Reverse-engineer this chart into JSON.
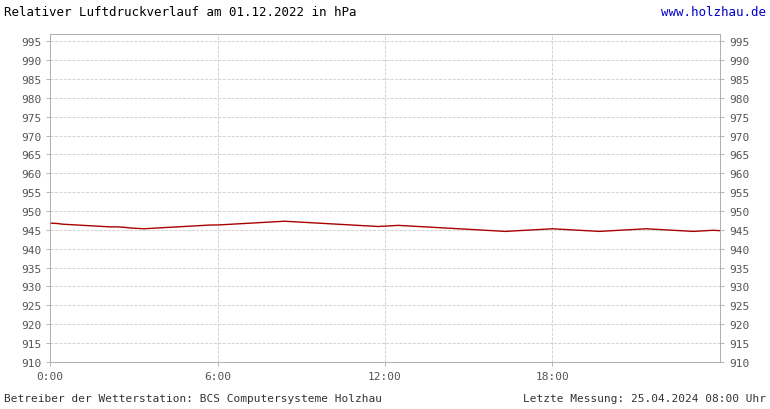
{
  "title": "Relativer Luftdruckverlauf am 01.12.2022 in hPa",
  "website": "www.holzhau.de",
  "footer_left": "Betreiber der Wetterstation: BCS Computersysteme Holzhau",
  "footer_right": "Letzte Messung: 25.04.2024 08:00 Uhr",
  "background_color": "#ffffff",
  "plot_bg_color": "#ffffff",
  "grid_color": "#cccccc",
  "line_color": "#aa0000",
  "title_color": "#000000",
  "website_color": "#0000cc",
  "footer_color": "#333333",
  "ylim": [
    910,
    997
  ],
  "ytick_min": 910,
  "ytick_max": 995,
  "ytick_step": 5,
  "xtick_labels": [
    "0:00",
    "6:00",
    "12:00",
    "18:00"
  ],
  "xtick_positions": [
    0.0,
    0.25,
    0.5,
    0.75
  ],
  "xlim": [
    0,
    1
  ],
  "title_fontsize": 9,
  "website_fontsize": 9,
  "footer_fontsize": 8,
  "tick_fontsize": 8,
  "pressure_data_x": [
    0.0,
    0.01,
    0.02,
    0.03,
    0.04,
    0.05,
    0.06,
    0.07,
    0.08,
    0.09,
    0.1,
    0.11,
    0.12,
    0.13,
    0.14,
    0.15,
    0.16,
    0.17,
    0.18,
    0.19,
    0.2,
    0.21,
    0.22,
    0.23,
    0.24,
    0.25,
    0.26,
    0.27,
    0.28,
    0.29,
    0.3,
    0.31,
    0.32,
    0.33,
    0.34,
    0.35,
    0.36,
    0.37,
    0.38,
    0.39,
    0.4,
    0.41,
    0.42,
    0.43,
    0.44,
    0.45,
    0.46,
    0.47,
    0.48,
    0.49,
    0.5,
    0.51,
    0.52,
    0.53,
    0.54,
    0.55,
    0.56,
    0.57,
    0.58,
    0.59,
    0.6,
    0.61,
    0.62,
    0.63,
    0.64,
    0.65,
    0.66,
    0.67,
    0.68,
    0.69,
    0.7,
    0.71,
    0.72,
    0.73,
    0.74,
    0.75,
    0.76,
    0.77,
    0.78,
    0.79,
    0.8,
    0.81,
    0.82,
    0.83,
    0.84,
    0.85,
    0.86,
    0.87,
    0.88,
    0.89,
    0.9,
    0.91,
    0.92,
    0.93,
    0.94,
    0.95,
    0.96,
    0.97,
    0.98,
    0.99,
    1.0
  ],
  "pressure_data_y": [
    946.8,
    946.7,
    946.5,
    946.4,
    946.3,
    946.2,
    946.1,
    946.0,
    945.9,
    945.8,
    945.8,
    945.7,
    945.5,
    945.4,
    945.3,
    945.4,
    945.5,
    945.6,
    945.7,
    945.8,
    945.9,
    946.0,
    946.1,
    946.2,
    946.3,
    946.3,
    946.4,
    946.5,
    946.6,
    946.7,
    946.8,
    946.9,
    947.0,
    947.1,
    947.2,
    947.3,
    947.2,
    947.1,
    947.0,
    946.9,
    946.8,
    946.7,
    946.6,
    946.5,
    946.4,
    946.3,
    946.2,
    946.1,
    946.0,
    945.9,
    946.0,
    946.1,
    946.2,
    946.1,
    946.0,
    945.9,
    945.8,
    945.7,
    945.6,
    945.5,
    945.4,
    945.3,
    945.2,
    945.1,
    945.0,
    944.9,
    944.8,
    944.7,
    944.6,
    944.7,
    944.8,
    944.9,
    945.0,
    945.1,
    945.2,
    945.3,
    945.2,
    945.1,
    945.0,
    944.9,
    944.8,
    944.7,
    944.6,
    944.7,
    944.8,
    944.9,
    945.0,
    945.1,
    945.2,
    945.3,
    945.2,
    945.1,
    945.0,
    944.9,
    944.8,
    944.7,
    944.6,
    944.7,
    944.8,
    944.9,
    944.8
  ]
}
